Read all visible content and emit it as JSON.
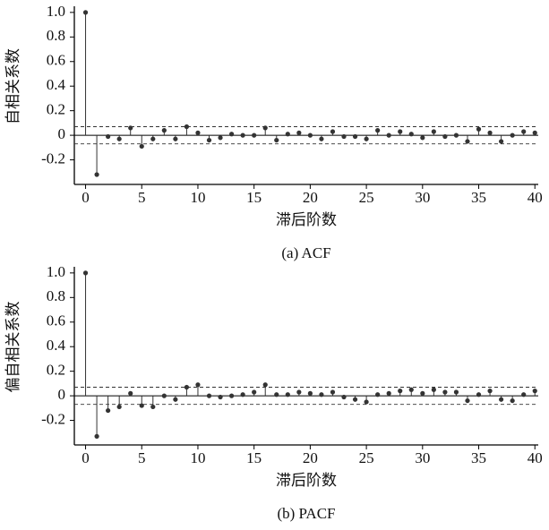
{
  "chart_data": [
    {
      "type": "stem",
      "caption": "(a)  ACF",
      "xlabel": "滞后阶数",
      "ylabel": "自相关系数",
      "x": [
        0,
        1,
        2,
        3,
        4,
        5,
        6,
        7,
        8,
        9,
        10,
        11,
        12,
        13,
        14,
        15,
        16,
        17,
        18,
        19,
        20,
        21,
        22,
        23,
        24,
        25,
        26,
        27,
        28,
        29,
        30,
        31,
        32,
        33,
        34,
        35,
        36,
        37,
        38,
        39,
        40
      ],
      "values": [
        1.0,
        -0.32,
        -0.01,
        -0.03,
        0.06,
        -0.09,
        -0.03,
        0.04,
        -0.03,
        0.07,
        0.02,
        -0.04,
        -0.02,
        0.01,
        0.0,
        0.0,
        0.06,
        -0.04,
        0.01,
        0.02,
        0.0,
        -0.03,
        0.03,
        -0.01,
        -0.01,
        -0.03,
        0.04,
        0.0,
        0.03,
        0.01,
        -0.02,
        0.03,
        -0.01,
        0.0,
        -0.05,
        0.05,
        0.02,
        -0.05,
        0.0,
        0.03,
        0.02
      ],
      "color": "#333333",
      "confidence": [
        -0.07,
        0.07
      ],
      "xlim": [
        -1,
        40.3
      ],
      "xticks": [
        0,
        5,
        10,
        15,
        20,
        25,
        30,
        35,
        40
      ],
      "ylim": [
        -0.4,
        1.05
      ],
      "yticks": [
        -0.2,
        0,
        0.2,
        0.4,
        0.6,
        0.8,
        {
          "value": 1,
          "label": "1.0"
        }
      ]
    },
    {
      "type": "stem",
      "caption": "(b)  PACF",
      "xlabel": "滞后阶数",
      "ylabel": "偏自相关系数",
      "x": [
        0,
        1,
        2,
        3,
        4,
        5,
        6,
        7,
        8,
        9,
        10,
        11,
        12,
        13,
        14,
        15,
        16,
        17,
        18,
        19,
        20,
        21,
        22,
        23,
        24,
        25,
        26,
        27,
        28,
        29,
        30,
        31,
        32,
        33,
        34,
        35,
        36,
        37,
        38,
        39,
        40
      ],
      "values": [
        1.0,
        -0.33,
        -0.12,
        -0.09,
        0.02,
        -0.08,
        -0.09,
        0.0,
        -0.03,
        0.07,
        0.09,
        0.0,
        -0.01,
        0.0,
        0.01,
        0.03,
        0.09,
        0.01,
        0.01,
        0.03,
        0.02,
        0.01,
        0.03,
        -0.01,
        -0.03,
        -0.05,
        0.01,
        0.02,
        0.04,
        0.05,
        0.02,
        0.05,
        0.03,
        0.03,
        -0.04,
        0.01,
        0.04,
        -0.03,
        -0.04,
        0.01,
        0.04
      ],
      "color": "#333333",
      "confidence": [
        -0.07,
        0.07
      ],
      "xlim": [
        -1,
        40.3
      ],
      "xticks": [
        0,
        5,
        10,
        15,
        20,
        25,
        30,
        35,
        40
      ],
      "ylim": [
        -0.4,
        1.05
      ],
      "yticks": [
        -0.2,
        0,
        0.2,
        0.4,
        0.6,
        0.8,
        {
          "value": 1,
          "label": "1.0"
        }
      ]
    }
  ]
}
